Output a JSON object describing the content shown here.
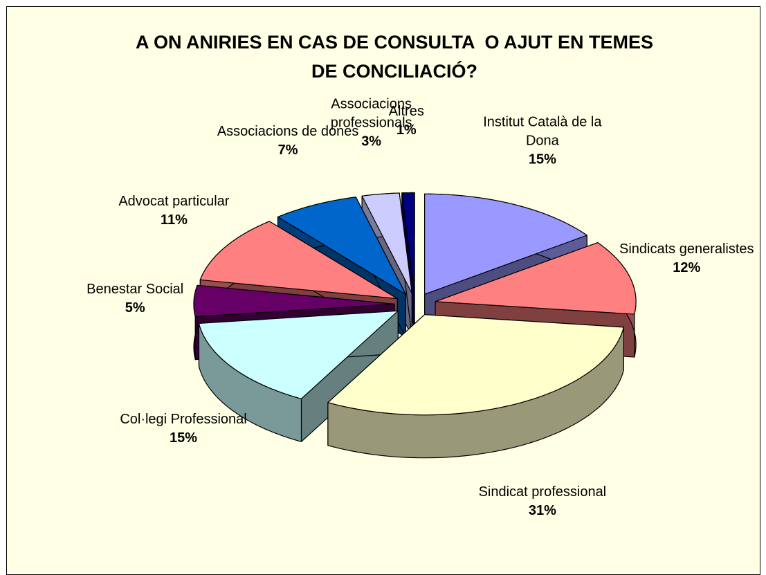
{
  "chart_data": {
    "type": "pie",
    "title": "A ON ANIRIES EN CAS DE CONSULTA  O AJUT EN TEMES DE CONCILIACIÓ?",
    "categories": [
      "Institut Català de la Dona",
      "Sindicats generalistes",
      "Sindicat professional",
      "Col·legi Professional",
      "Benestar Social",
      "Advocat particular",
      "Associacions de dones",
      "Associacions professionals",
      "Altres"
    ],
    "values": [
      15,
      12,
      31,
      15,
      5,
      11,
      7,
      3,
      1
    ],
    "value_labels": [
      "15%",
      "12%",
      "31%",
      "15%",
      "5%",
      "11%",
      "7%",
      "3%",
      "1%"
    ],
    "colors": [
      "#9999ff",
      "#ff8080",
      "#ffffcc",
      "#ccffff",
      "#660066",
      "#ff8080",
      "#0066cc",
      "#ccccff",
      "#000080"
    ]
  }
}
